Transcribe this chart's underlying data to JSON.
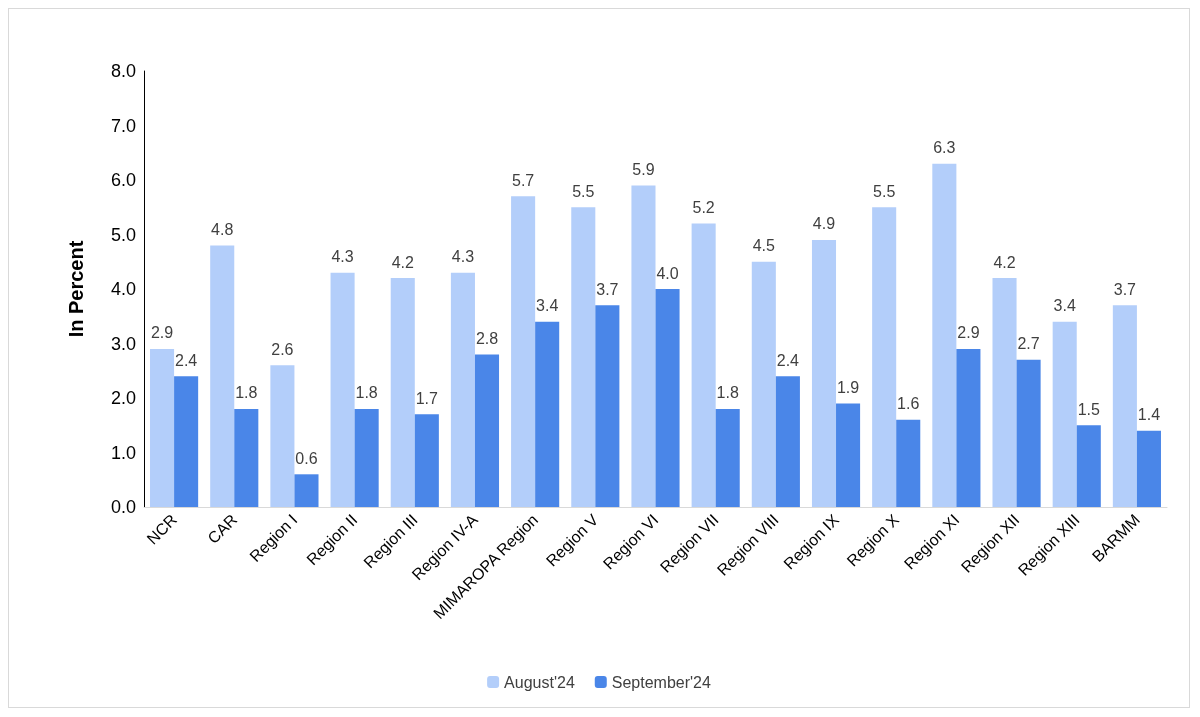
{
  "chart_data": {
    "type": "bar",
    "ylabel": "In Percent",
    "categories": [
      "NCR",
      "CAR",
      "Region I",
      "Region II",
      "Region III",
      "Region IV-A",
      "MIMAROPA Region",
      "Region V",
      "Region VI",
      "Region VII",
      "Region VIII",
      "Region IX",
      "Region X",
      "Region XI",
      "Region XII",
      "Region XIII",
      "BARMM"
    ],
    "series": [
      {
        "name": "August'24",
        "color": "#b3cefa",
        "values": [
          2.9,
          4.8,
          2.6,
          4.3,
          4.2,
          4.3,
          5.7,
          5.5,
          5.9,
          5.2,
          4.5,
          4.9,
          5.5,
          6.3,
          4.2,
          3.4,
          3.7
        ],
        "value_labels": [
          "2.9",
          "4.8",
          "2.6",
          "4.3",
          "4.2",
          "4.3",
          "5.7",
          "5.5",
          "5.9",
          "5.2",
          "4.5",
          "4.9",
          "5.5",
          "6.3",
          "4.2",
          "3.4",
          "3.7"
        ]
      },
      {
        "name": "September'24",
        "color": "#4a86e8",
        "values": [
          2.4,
          1.8,
          0.6,
          1.8,
          1.7,
          2.8,
          3.4,
          3.7,
          4.0,
          1.8,
          2.4,
          1.9,
          1.6,
          2.9,
          2.7,
          1.5,
          1.4
        ],
        "value_labels": [
          "2.4",
          "1.8",
          "0.6",
          "1.8",
          "1.7",
          "2.8",
          "3.4",
          "3.7",
          "4.0",
          "1.8",
          "2.4",
          "1.9",
          "1.6",
          "2.9",
          "2.7",
          "1.5",
          "1.4"
        ]
      }
    ],
    "ylim": [
      0,
      8
    ],
    "yticks": [
      {
        "value": 0,
        "label": "0.0"
      },
      {
        "value": 1,
        "label": "1.0"
      },
      {
        "value": 2,
        "label": "2.0"
      },
      {
        "value": 3,
        "label": "3.0"
      },
      {
        "value": 4,
        "label": "4.0"
      },
      {
        "value": 5,
        "label": "5.0"
      },
      {
        "value": 6,
        "label": "6.0"
      },
      {
        "value": 7,
        "label": "7.0"
      },
      {
        "value": 8,
        "label": "8.0"
      }
    ],
    "grid": false,
    "legend": "bottom"
  }
}
